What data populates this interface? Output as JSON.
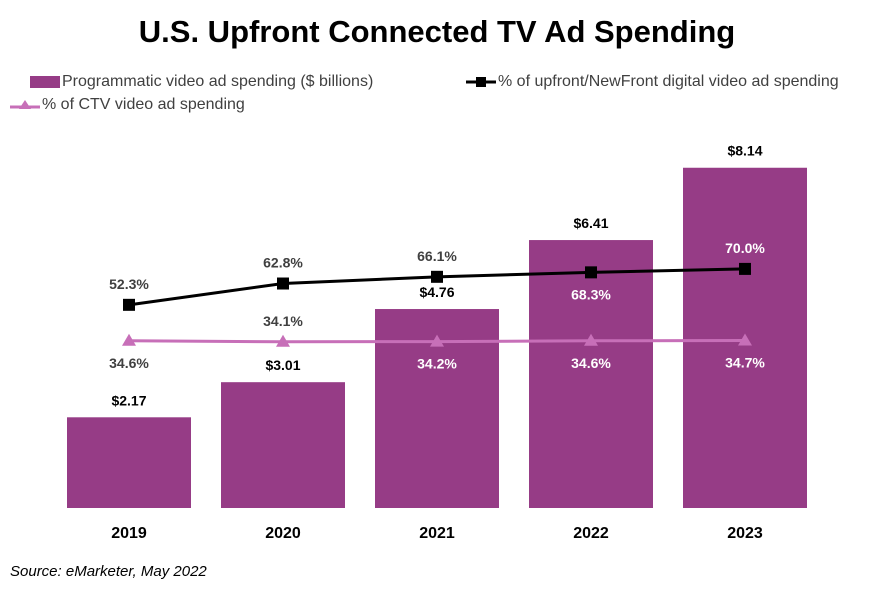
{
  "chart_data": {
    "type": "bar",
    "title": "U.S. Upfront Connected TV Ad Spending",
    "categories": [
      "2019",
      "2020",
      "2021",
      "2022",
      "2023"
    ],
    "series": [
      {
        "name": "Programmatic video ad spending ($ billions)",
        "type": "bar",
        "axis": "primary",
        "values": [
          2.17,
          3.01,
          4.76,
          6.41,
          8.14
        ],
        "labels": [
          "$2.17",
          "$3.01",
          "$4.76",
          "$6.41",
          "$8.14"
        ],
        "color": "#963c86"
      },
      {
        "name": "% of upfront/NewFront digital video ad spending",
        "type": "line",
        "marker": "square",
        "axis": "secondary",
        "values": [
          52.3,
          62.8,
          66.1,
          68.3,
          70.0
        ],
        "labels": [
          "52.3%",
          "62.8%",
          "66.1%",
          "68.3%",
          "70.0%"
        ],
        "color": "#000000"
      },
      {
        "name": "% of CTV video ad spending",
        "type": "line",
        "marker": "triangle",
        "axis": "secondary",
        "values": [
          34.6,
          34.1,
          34.2,
          34.6,
          34.7
        ],
        "labels": [
          "34.6%",
          "34.1%",
          "34.2%",
          "34.6%",
          "34.7%"
        ],
        "color": "#c76fb8"
      }
    ],
    "legend": "top",
    "grid": false
  },
  "source": "Source: eMarketer, May 2022"
}
